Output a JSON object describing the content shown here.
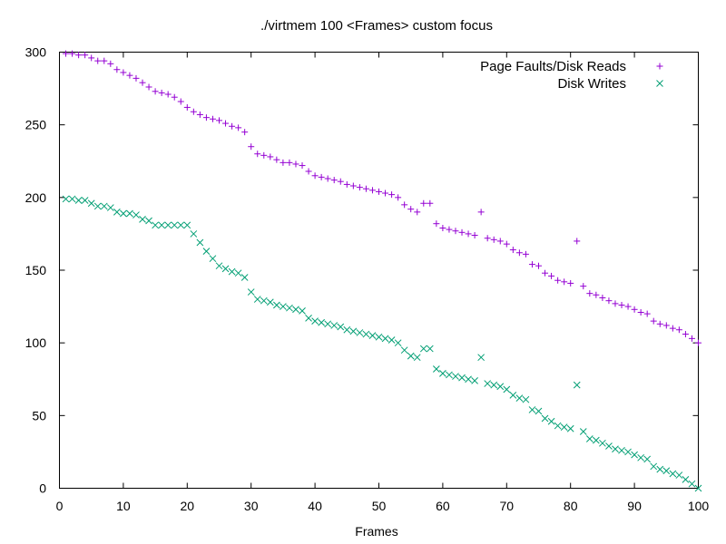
{
  "chart_data": {
    "type": "scatter",
    "title": "./virtmem 100 <Frames> custom focus",
    "xlabel": "Frames",
    "ylabel": "",
    "xlim": [
      0,
      100
    ],
    "ylim": [
      0,
      300
    ],
    "xticks": [
      "0",
      "10",
      "20",
      "30",
      "40",
      "50",
      "60",
      "70",
      "80",
      "90",
      "100"
    ],
    "yticks": [
      "0",
      "50",
      "100",
      "150",
      "200",
      "250",
      "300"
    ],
    "grid": false,
    "legend_position": "top-right",
    "series": [
      {
        "name": "Page Faults/Disk Reads",
        "marker": "plus",
        "color": "#9400d3",
        "x": [
          1,
          2,
          3,
          4,
          5,
          6,
          7,
          8,
          9,
          10,
          11,
          12,
          13,
          14,
          15,
          16,
          17,
          18,
          19,
          20,
          21,
          22,
          23,
          24,
          25,
          26,
          27,
          28,
          29,
          30,
          31,
          32,
          33,
          34,
          35,
          36,
          37,
          38,
          39,
          40,
          41,
          42,
          43,
          44,
          45,
          46,
          47,
          48,
          49,
          50,
          51,
          52,
          53,
          54,
          55,
          56,
          57,
          58,
          59,
          60,
          61,
          62,
          63,
          64,
          65,
          66,
          67,
          68,
          69,
          70,
          71,
          72,
          73,
          74,
          75,
          76,
          77,
          78,
          79,
          80,
          81,
          82,
          83,
          84,
          85,
          86,
          87,
          88,
          89,
          90,
          91,
          92,
          93,
          94,
          95,
          96,
          97,
          98,
          99,
          100
        ],
        "y": [
          299,
          299,
          298,
          298,
          296,
          294,
          294,
          292,
          288,
          286,
          284,
          282,
          279,
          276,
          273,
          272,
          271,
          269,
          266,
          262,
          259,
          257,
          255,
          254,
          253,
          251,
          249,
          248,
          245,
          235,
          230,
          229,
          228,
          226,
          224,
          224,
          223,
          222,
          218,
          215,
          214,
          213,
          212,
          211,
          209,
          208,
          207,
          206,
          205,
          204,
          203,
          202,
          200,
          195,
          192,
          190,
          196,
          196,
          182,
          179,
          178,
          177,
          176,
          175,
          174,
          190,
          172,
          171,
          170,
          168,
          164,
          162,
          161,
          154,
          153,
          148,
          146,
          143,
          142,
          141,
          170,
          139,
          134,
          133,
          131,
          129,
          127,
          126,
          125,
          123,
          121,
          120,
          115,
          113,
          112,
          110,
          109,
          106,
          103,
          100
        ]
      },
      {
        "name": "Disk Writes",
        "marker": "x",
        "color": "#009e73",
        "x": [
          1,
          2,
          3,
          4,
          5,
          6,
          7,
          8,
          9,
          10,
          11,
          12,
          13,
          14,
          15,
          16,
          17,
          18,
          19,
          20,
          21,
          22,
          23,
          24,
          25,
          26,
          27,
          28,
          29,
          30,
          31,
          32,
          33,
          34,
          35,
          36,
          37,
          38,
          39,
          40,
          41,
          42,
          43,
          44,
          45,
          46,
          47,
          48,
          49,
          50,
          51,
          52,
          53,
          54,
          55,
          56,
          57,
          58,
          59,
          60,
          61,
          62,
          63,
          64,
          65,
          66,
          67,
          68,
          69,
          70,
          71,
          72,
          73,
          74,
          75,
          76,
          77,
          78,
          79,
          80,
          81,
          82,
          83,
          84,
          85,
          86,
          87,
          88,
          89,
          90,
          91,
          92,
          93,
          94,
          95,
          96,
          97,
          98,
          99,
          100
        ],
        "y": [
          199,
          199,
          198,
          198,
          196,
          194,
          194,
          193,
          190,
          189,
          189,
          188,
          185,
          184,
          181,
          181,
          181,
          181,
          181,
          181,
          175,
          169,
          163,
          158,
          153,
          151,
          149,
          148,
          145,
          135,
          130,
          129,
          128,
          126,
          125,
          124,
          123,
          122,
          117,
          115,
          114,
          113,
          112,
          111,
          109,
          108,
          107,
          106,
          105,
          104,
          103,
          102,
          100,
          95,
          91,
          90,
          96,
          96,
          82,
          79,
          78,
          77,
          76,
          75,
          74,
          90,
          72,
          71,
          70,
          68,
          64,
          62,
          61,
          54,
          53,
          48,
          46,
          43,
          42,
          41,
          71,
          39,
          34,
          33,
          31,
          29,
          27,
          26,
          25,
          23,
          21,
          20,
          15,
          13,
          12,
          10,
          9,
          6,
          3,
          0
        ]
      }
    ]
  }
}
